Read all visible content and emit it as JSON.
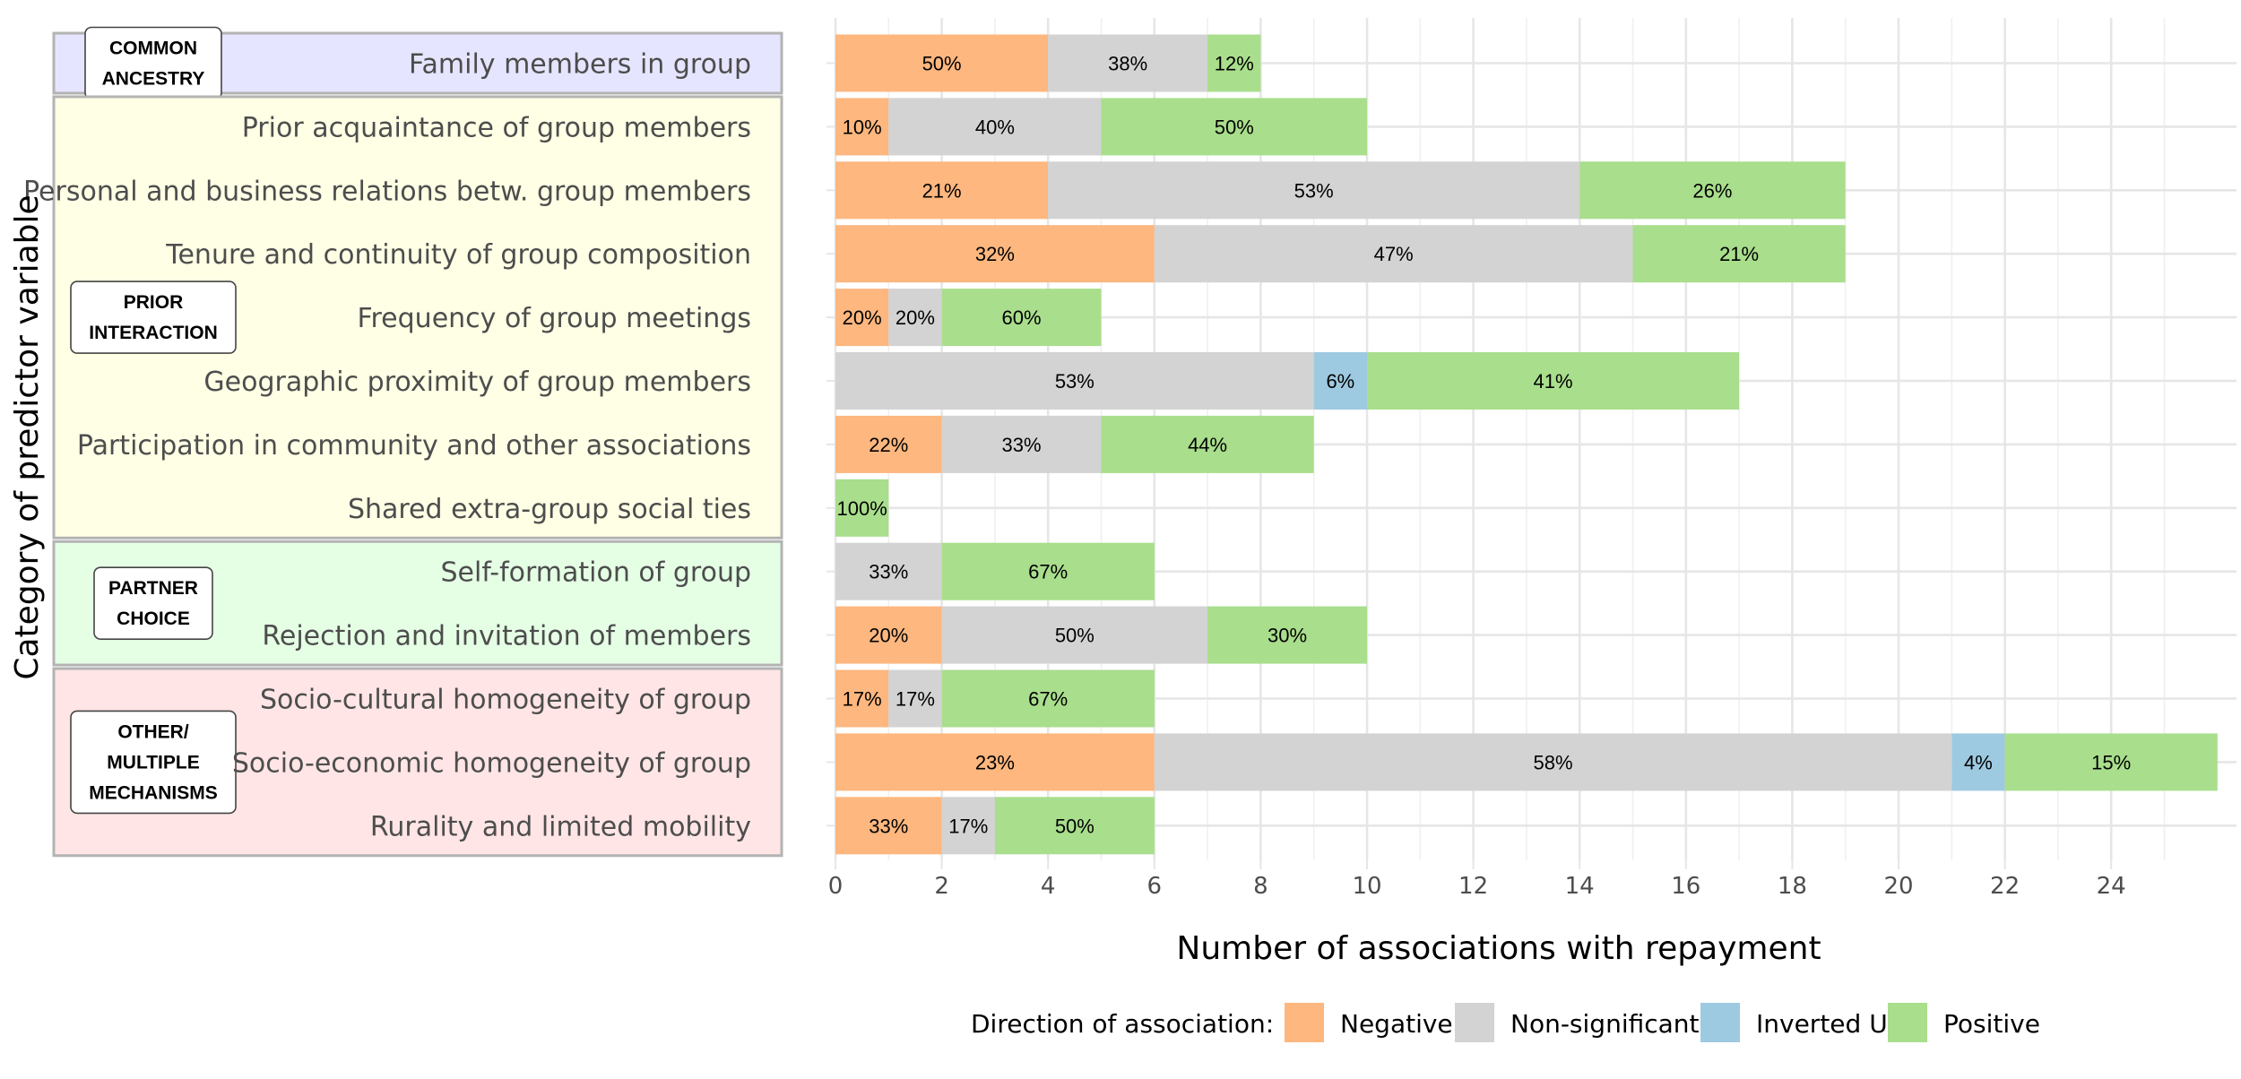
{
  "chart_data": {
    "type": "bar",
    "orientation": "horizontal",
    "stacked": true,
    "xlabel": "Number of associations with repayment",
    "ylabel": "Category of predictor variable",
    "xlim": [
      0,
      26
    ],
    "x_ticks": [
      0,
      2,
      4,
      6,
      8,
      10,
      12,
      14,
      16,
      18,
      20,
      22,
      24
    ],
    "grid": true,
    "legend": {
      "title": "Direction of association:",
      "position": "bottom"
    },
    "series": [
      {
        "name": "Negative",
        "color": "#fdb77f"
      },
      {
        "name": "Non-significant",
        "color": "#d3d3d3"
      },
      {
        "name": "Inverted U",
        "color": "#9ecae1"
      },
      {
        "name": "Positive",
        "color": "#a9de8c"
      }
    ],
    "groups": [
      {
        "label": "COMMON ANCESTRY",
        "lines": [
          "COMMON",
          "ANCESTRY"
        ],
        "color": "#e5e5ff",
        "rows": [
          0
        ]
      },
      {
        "label": "PRIOR INTERACTION",
        "lines": [
          "PRIOR",
          "INTERACTION"
        ],
        "color": "#ffffe5",
        "rows": [
          1,
          2,
          3,
          4,
          5,
          6,
          7
        ]
      },
      {
        "label": "PARTNER CHOICE",
        "lines": [
          "PARTNER",
          "CHOICE"
        ],
        "color": "#e5ffe5",
        "rows": [
          8,
          9
        ]
      },
      {
        "label": "OTHER/ MULTIPLE MECHANISMS",
        "lines": [
          "OTHER/",
          "MULTIPLE",
          "MECHANISMS"
        ],
        "color": "#ffe5e5",
        "rows": [
          10,
          11,
          12
        ]
      }
    ],
    "categories": [
      "Family members in group",
      "Prior acquaintance of group members",
      "Personal and business relations betw. group members",
      "Tenure and continuity of group composition",
      "Frequency of group meetings",
      "Geographic proximity of group members",
      "Participation in community and other associations",
      "Shared extra-group social ties",
      "Self-formation of group",
      "Rejection and invitation of members",
      "Socio-cultural homogeneity of group",
      "Socio-economic homogeneity of group",
      "Rurality and limited mobility"
    ],
    "values": {
      "Negative": [
        4,
        1,
        4,
        6,
        1,
        0,
        2,
        0,
        0,
        2,
        1,
        6,
        2
      ],
      "Non-significant": [
        3,
        4,
        10,
        9,
        1,
        9,
        3,
        0,
        2,
        5,
        1,
        15,
        1
      ],
      "Inverted U": [
        0,
        0,
        0,
        0,
        0,
        1,
        0,
        0,
        0,
        0,
        0,
        1,
        0
      ],
      "Positive": [
        1,
        5,
        5,
        4,
        3,
        7,
        4,
        1,
        4,
        3,
        4,
        4,
        3
      ]
    },
    "data_labels": {
      "Negative": [
        "50%",
        "10%",
        "21%",
        "32%",
        "20%",
        "",
        "22%",
        "",
        "",
        "20%",
        "17%",
        "23%",
        "33%"
      ],
      "Non-significant": [
        "38%",
        "40%",
        "53%",
        "47%",
        "20%",
        "53%",
        "33%",
        "",
        "33%",
        "50%",
        "17%",
        "58%",
        "17%"
      ],
      "Inverted U": [
        "",
        "",
        "",
        "",
        "",
        "6%",
        "",
        "",
        "",
        "",
        "",
        "4%",
        ""
      ],
      "Positive": [
        "12%",
        "50%",
        "26%",
        "21%",
        "60%",
        "41%",
        "44%",
        "100%",
        "67%",
        "30%",
        "67%",
        "15%",
        "50%"
      ]
    }
  }
}
